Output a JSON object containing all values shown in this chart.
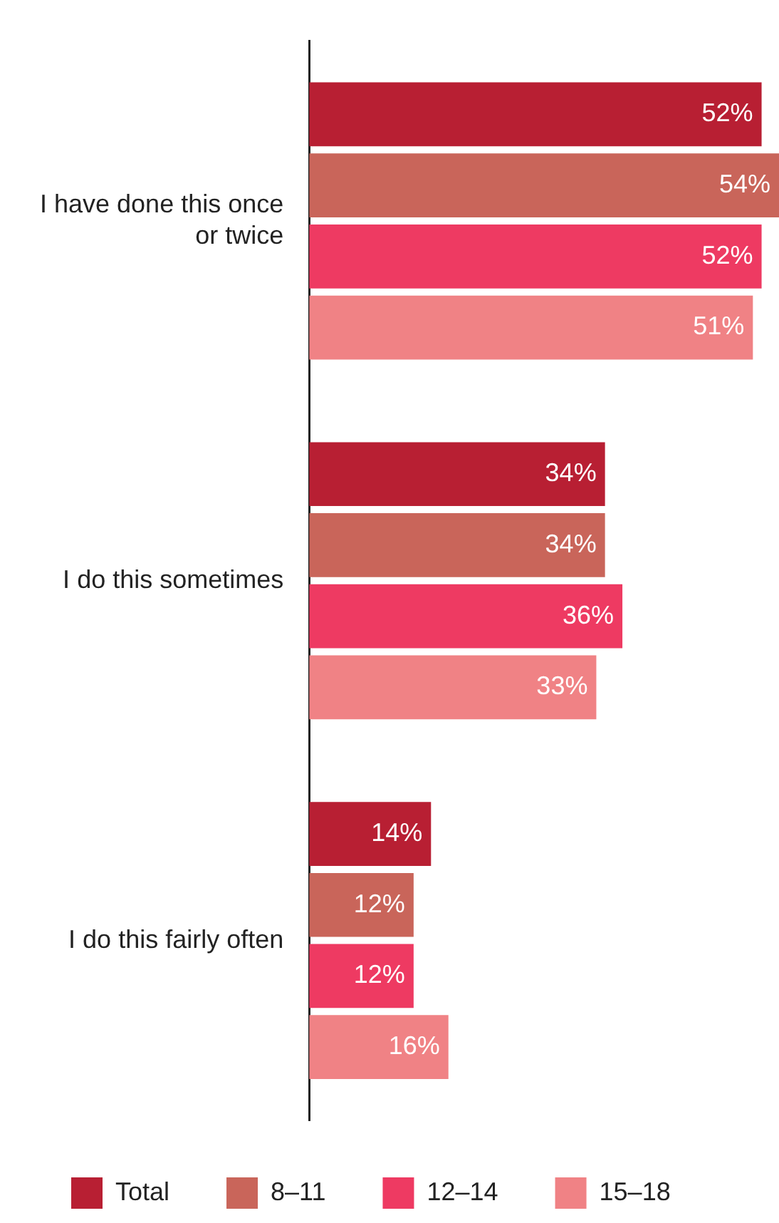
{
  "chart_data": {
    "type": "bar",
    "orientation": "horizontal",
    "categories": [
      "I have done this once or twice",
      "I do this sometimes",
      "I do this fairly often"
    ],
    "series": [
      {
        "name": "Total",
        "color": "#b81f33",
        "values": [
          52,
          34,
          14
        ],
        "value_labels": [
          "52%",
          "34%",
          "14%"
        ]
      },
      {
        "name": "8–11",
        "color": "#c9655a",
        "values": [
          54,
          34,
          12
        ],
        "value_labels": [
          "54%",
          "34%",
          "12%"
        ]
      },
      {
        "name": "12–14",
        "color": "#ee3a62",
        "values": [
          52,
          36,
          12
        ],
        "value_labels": [
          "52%",
          "36%",
          "12%"
        ]
      },
      {
        "name": "15–18",
        "color": "#f08285",
        "values": [
          51,
          33,
          16
        ],
        "value_labels": [
          "51%",
          "33%",
          "16%"
        ]
      }
    ],
    "xlim": [
      0,
      54
    ],
    "tick_labels": "y",
    "legend": "bottom"
  }
}
